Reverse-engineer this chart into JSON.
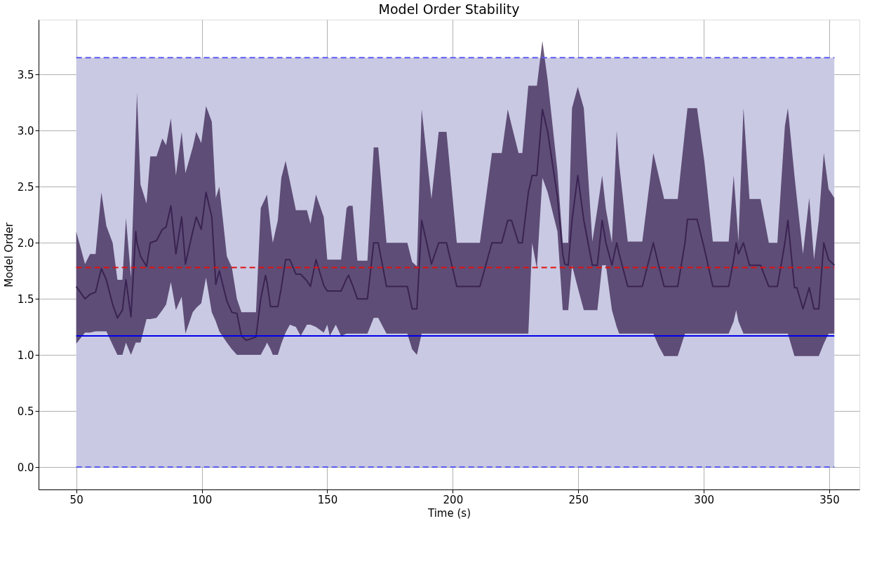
{
  "chart_data": {
    "type": "line",
    "title": "Model Order Stability",
    "xlabel": "Time (s)",
    "ylabel": "Model Order",
    "xlim": [
      35,
      362
    ],
    "xticks": [
      50,
      100,
      150,
      200,
      250,
      300,
      350
    ],
    "ylim": [
      -0.2,
      3.99
    ],
    "yticks": [
      {
        "value": 0,
        "label": "0.0"
      },
      0.5,
      {
        "value": 1,
        "label": "1.0"
      },
      1.5,
      {
        "value": 2,
        "label": "2.0"
      },
      2.5,
      {
        "value": 3,
        "label": "3.0"
      },
      3.5
    ],
    "grid": true,
    "line_style": "solid",
    "marker": "none",
    "series": [
      {
        "color": "#3a2352",
        "x": [
          50,
          53.5,
          55.5,
          57.7,
          60,
          62,
          64.5,
          66.4,
          68.4,
          69.8,
          71.8,
          73.7,
          74.2,
          75.6,
          78,
          79.5,
          82,
          84.3,
          85.8,
          87.7,
          89.7,
          92,
          93.5,
          96.4,
          97.8,
          99.8,
          101.7,
          104,
          105.6,
          107,
          110,
          112,
          114,
          115.8,
          117.7,
          121.6,
          123.5,
          125.4,
          126,
          127.4,
          128.3,
          130.3,
          131.7,
          133.4,
          135.1,
          137.5,
          139.4,
          141.9,
          143.3,
          145.5,
          148.6,
          150,
          151,
          153.4,
          155.5,
          157.7,
          158.5,
          160.1,
          162,
          166,
          168.5,
          170.3,
          173.6,
          181.9,
          183.8,
          185.7,
          187.6,
          191.5,
          194.4,
          197.5,
          201.6,
          210.8,
          215.6,
          219.5,
          221.9,
          223.4,
          226.2,
          227.7,
          230.1,
          231.6,
          233.5,
          235.7,
          237.8,
          241.7,
          243.8,
          244.6,
          246,
          247.5,
          249.8,
          252.2,
          255.6,
          257.6,
          259.5,
          261,
          263.4,
          265.3,
          266.3,
          269.7,
          275.5,
          279.9,
          282,
          284.2,
          289.6,
          292.5,
          293.5,
          297.3,
          300.2,
          303.6,
          309.9,
          311.9,
          312.9,
          313.8,
          315.8,
          318.2,
          322.6,
          325.9,
          329.3,
          332.3,
          333.5,
          336.1,
          337.1,
          339.5,
          342,
          343.9,
          345.8,
          347.8,
          349.7,
          352
        ],
        "values": [
          1.61,
          1.5,
          1.54,
          1.56,
          1.77,
          1.67,
          1.45,
          1.33,
          1.4,
          1.67,
          1.34,
          2.1,
          2.0,
          1.88,
          1.79,
          2.0,
          2.02,
          2.12,
          2.14,
          2.33,
          1.9,
          2.23,
          1.81,
          2.1,
          2.23,
          2.12,
          2.45,
          2.23,
          1.63,
          1.75,
          1.48,
          1.38,
          1.37,
          1.17,
          1.13,
          1.16,
          1.5,
          1.71,
          1.65,
          1.43,
          1.43,
          1.43,
          1.6,
          1.85,
          1.85,
          1.72,
          1.72,
          1.66,
          1.61,
          1.85,
          1.62,
          1.57,
          1.57,
          1.57,
          1.57,
          1.68,
          1.71,
          1.62,
          1.5,
          1.5,
          2.0,
          2.0,
          1.61,
          1.61,
          1.41,
          1.41,
          2.2,
          1.81,
          2.0,
          2.0,
          1.61,
          1.61,
          2.0,
          2.0,
          2.2,
          2.2,
          2.0,
          2.0,
          2.45,
          2.6,
          2.6,
          3.19,
          2.99,
          2.41,
          1.9,
          1.81,
          1.8,
          2.2,
          2.6,
          2.2,
          1.8,
          1.8,
          2.2,
          2.0,
          1.8,
          2.0,
          1.9,
          1.61,
          1.61,
          2.0,
          1.8,
          1.61,
          1.61,
          2.0,
          2.21,
          2.21,
          1.95,
          1.61,
          1.61,
          1.85,
          2.0,
          1.9,
          2.0,
          1.8,
          1.8,
          1.61,
          1.61,
          2.0,
          2.2,
          1.6,
          1.6,
          1.41,
          1.6,
          1.41,
          1.41,
          2.0,
          1.85,
          1.8
        ],
        "lower": [
          1.1,
          1.2,
          1.2,
          1.21,
          1.21,
          1.21,
          1.09,
          1.0,
          1.0,
          1.11,
          1.0,
          1.11,
          1.11,
          1.11,
          1.32,
          1.32,
          1.33,
          1.4,
          1.45,
          1.65,
          1.4,
          1.52,
          1.19,
          1.38,
          1.42,
          1.46,
          1.69,
          1.38,
          1.3,
          1.21,
          1.11,
          1.05,
          1.0,
          1.0,
          1.0,
          1.0,
          1.0,
          1.08,
          1.11,
          1.05,
          1.0,
          1.0,
          1.1,
          1.2,
          1.27,
          1.25,
          1.17,
          1.27,
          1.27,
          1.25,
          1.2,
          1.27,
          1.17,
          1.27,
          1.17,
          1.19,
          1.19,
          1.19,
          1.19,
          1.19,
          1.33,
          1.33,
          1.19,
          1.19,
          1.05,
          1.0,
          1.19,
          1.19,
          1.19,
          1.19,
          1.19,
          1.19,
          1.19,
          1.19,
          1.19,
          1.19,
          1.19,
          1.19,
          1.19,
          2.0,
          1.77,
          2.58,
          2.45,
          2.1,
          1.4,
          1.4,
          1.4,
          1.8,
          1.6,
          1.4,
          1.4,
          1.4,
          1.8,
          1.8,
          1.4,
          1.25,
          1.19,
          1.19,
          1.19,
          1.19,
          1.08,
          0.99,
          0.99,
          1.19,
          1.19,
          1.19,
          1.19,
          1.19,
          1.19,
          1.3,
          1.4,
          1.3,
          1.19,
          1.19,
          1.19,
          1.19,
          1.19,
          1.19,
          1.19,
          0.99,
          0.99,
          0.99,
          0.99,
          0.99,
          0.99,
          1.1,
          1.19,
          1.19
        ],
        "upper": [
          2.1,
          1.81,
          1.9,
          1.9,
          2.45,
          2.15,
          2.0,
          1.67,
          1.67,
          2.22,
          1.69,
          3.0,
          3.34,
          2.52,
          2.35,
          2.77,
          2.77,
          2.93,
          2.87,
          3.11,
          2.6,
          2.99,
          2.62,
          2.85,
          2.99,
          2.89,
          3.22,
          3.08,
          2.4,
          2.5,
          1.88,
          1.78,
          1.5,
          1.38,
          1.38,
          1.38,
          2.31,
          2.4,
          2.43,
          2.15,
          2.0,
          2.2,
          2.58,
          2.73,
          2.55,
          2.29,
          2.29,
          2.29,
          2.17,
          2.43,
          2.23,
          1.85,
          1.85,
          1.85,
          1.85,
          2.31,
          2.33,
          2.33,
          1.84,
          1.84,
          2.85,
          2.85,
          2.0,
          2.0,
          1.83,
          1.79,
          3.19,
          2.39,
          2.99,
          2.99,
          2.0,
          2.0,
          2.8,
          2.8,
          3.19,
          3.05,
          2.8,
          2.8,
          3.4,
          3.4,
          3.4,
          3.8,
          3.45,
          2.64,
          2.0,
          2.0,
          2.0,
          3.2,
          3.39,
          3.2,
          2.01,
          2.3,
          2.6,
          2.3,
          2.0,
          3.0,
          2.7,
          2.01,
          2.01,
          2.8,
          2.6,
          2.39,
          2.39,
          3.0,
          3.2,
          3.2,
          2.73,
          2.01,
          2.01,
          2.6,
          2.3,
          2.01,
          3.2,
          2.39,
          2.39,
          2.0,
          2.0,
          3.04,
          3.2,
          2.6,
          2.39,
          1.9,
          2.4,
          1.85,
          2.2,
          2.8,
          2.48,
          2.4
        ]
      }
    ],
    "ref_lines": [
      {
        "axis": "y",
        "value": 3.65,
        "color": "#5a5af0",
        "line_style": "dashed"
      },
      {
        "axis": "y",
        "value": 0.0,
        "color": "#5a5af0",
        "line_style": "dashed"
      },
      {
        "axis": "y",
        "value": 1.78,
        "color": "#e01010",
        "line_style": "dashed"
      },
      {
        "axis": "y",
        "value": 1.17,
        "color": "#0000ee",
        "line_style": "solid"
      }
    ],
    "bands": [
      {
        "axis": "y",
        "from": 0.0,
        "to": 3.65,
        "color": "#c9c9e3"
      }
    ]
  }
}
